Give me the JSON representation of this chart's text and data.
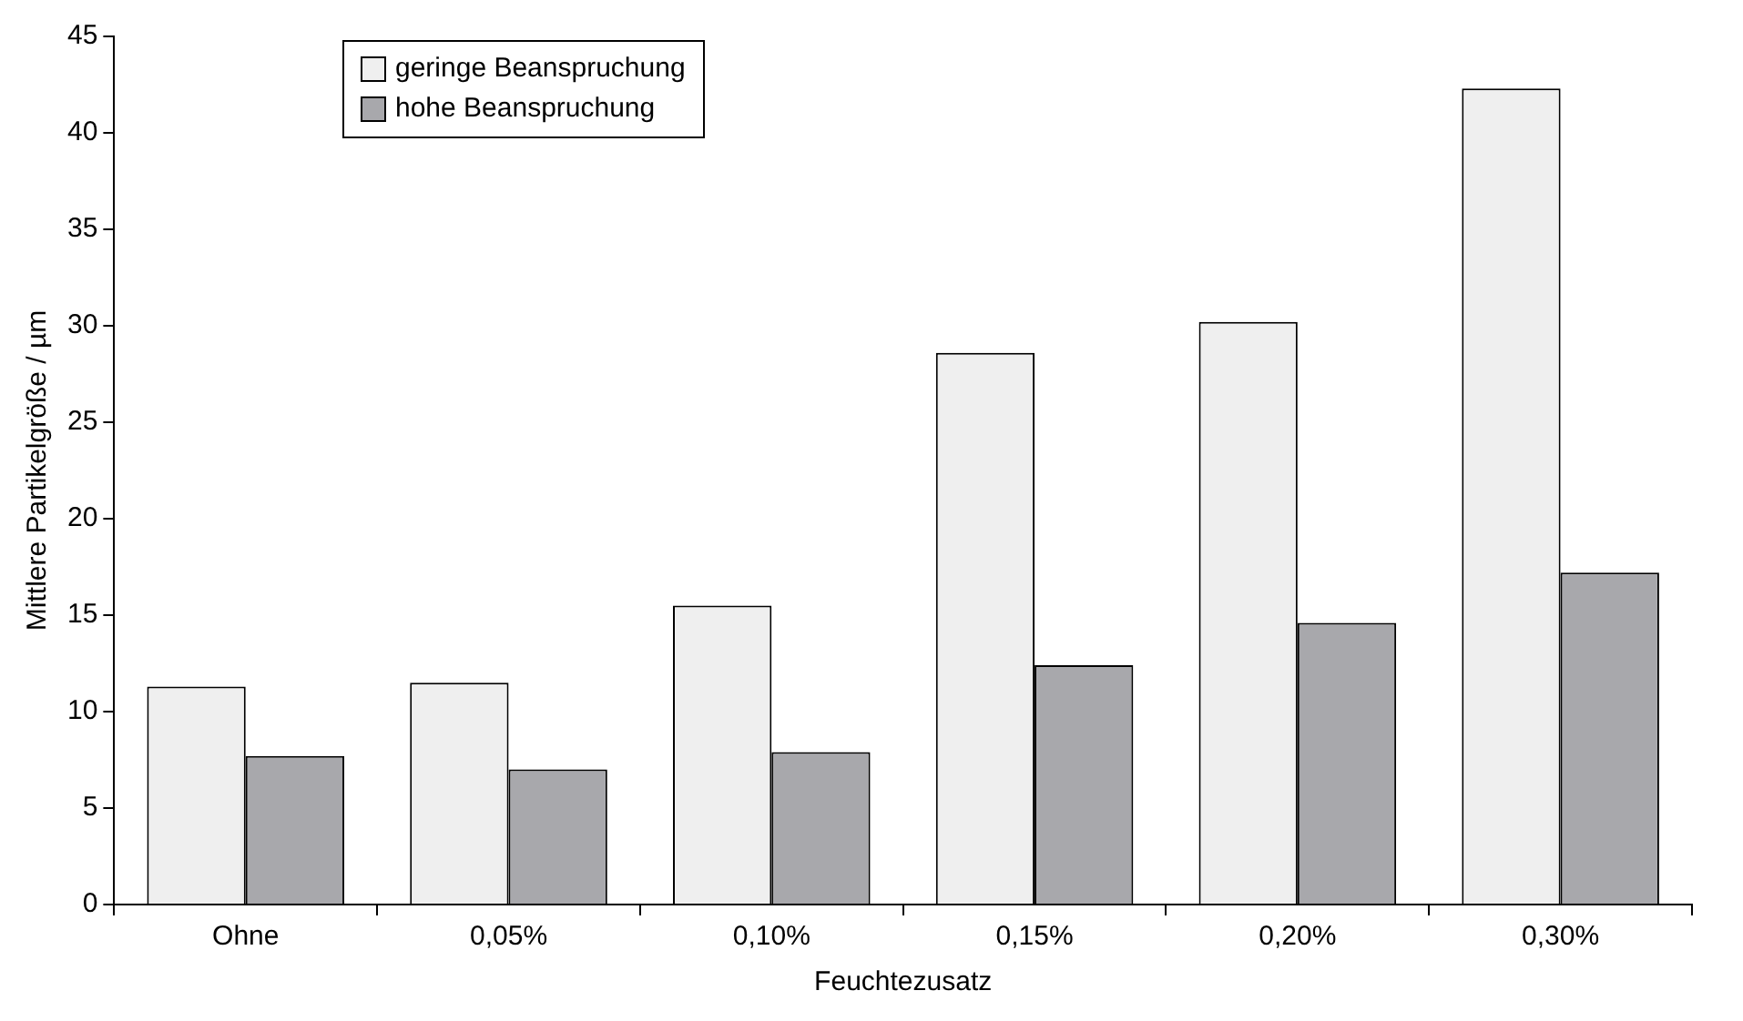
{
  "chart_data": {
    "type": "bar",
    "xlabel": "Feuchtezusatz",
    "ylabel": "Mittlere Partikelgröße / µm",
    "categories": [
      "Ohne",
      "0,05%",
      "0,10%",
      "0,15%",
      "0,20%",
      "0,30%"
    ],
    "series": [
      {
        "name": "geringe Beanspruchung",
        "color": "#efefef",
        "values": [
          11.3,
          11.5,
          15.5,
          28.6,
          30.2,
          42.3
        ]
      },
      {
        "name": "hohe Beanspruchung",
        "color": "#a8a8ac",
        "values": [
          7.7,
          7.0,
          7.9,
          12.4,
          14.6,
          17.2
        ]
      }
    ],
    "ylim": [
      0,
      45
    ],
    "yticks": [
      0,
      5,
      10,
      15,
      20,
      25,
      30,
      35,
      40,
      45
    ],
    "grid": false,
    "legend": "top left"
  }
}
